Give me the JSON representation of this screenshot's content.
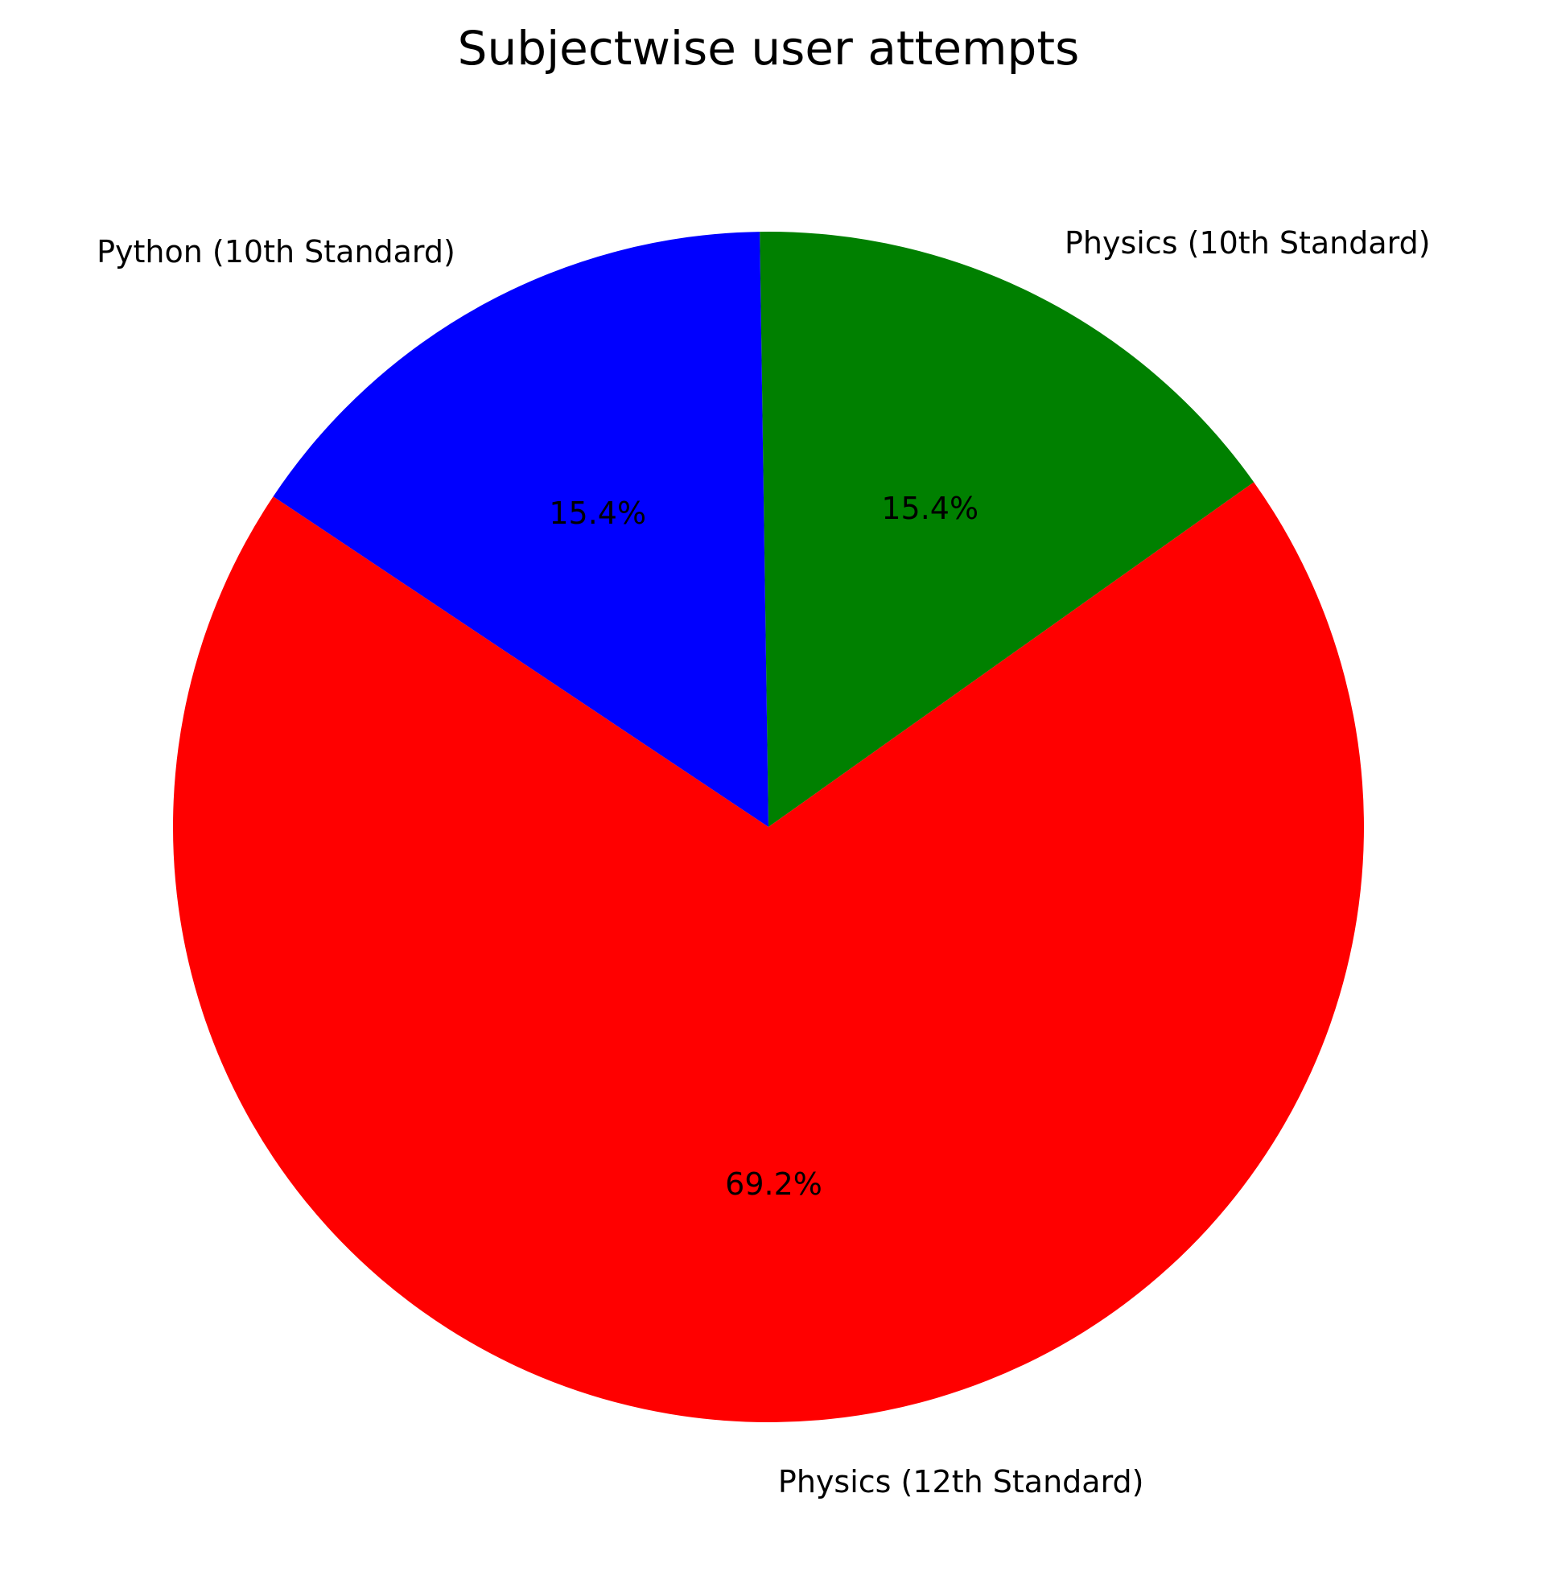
{
  "chart_data": {
    "type": "pie",
    "title": "Subjectwise user attempts",
    "slices": [
      {
        "label": "Physics (10th Standard)",
        "value": 15.4,
        "pct_label": "15.4%",
        "color": "#008000"
      },
      {
        "label": "Python (10th Standard)",
        "value": 15.4,
        "pct_label": "15.4%",
        "color": "#0000ff"
      },
      {
        "label": "Physics (12th Standard)",
        "value": 69.2,
        "pct_label": "69.2%",
        "color": "#ff0000"
      }
    ]
  }
}
